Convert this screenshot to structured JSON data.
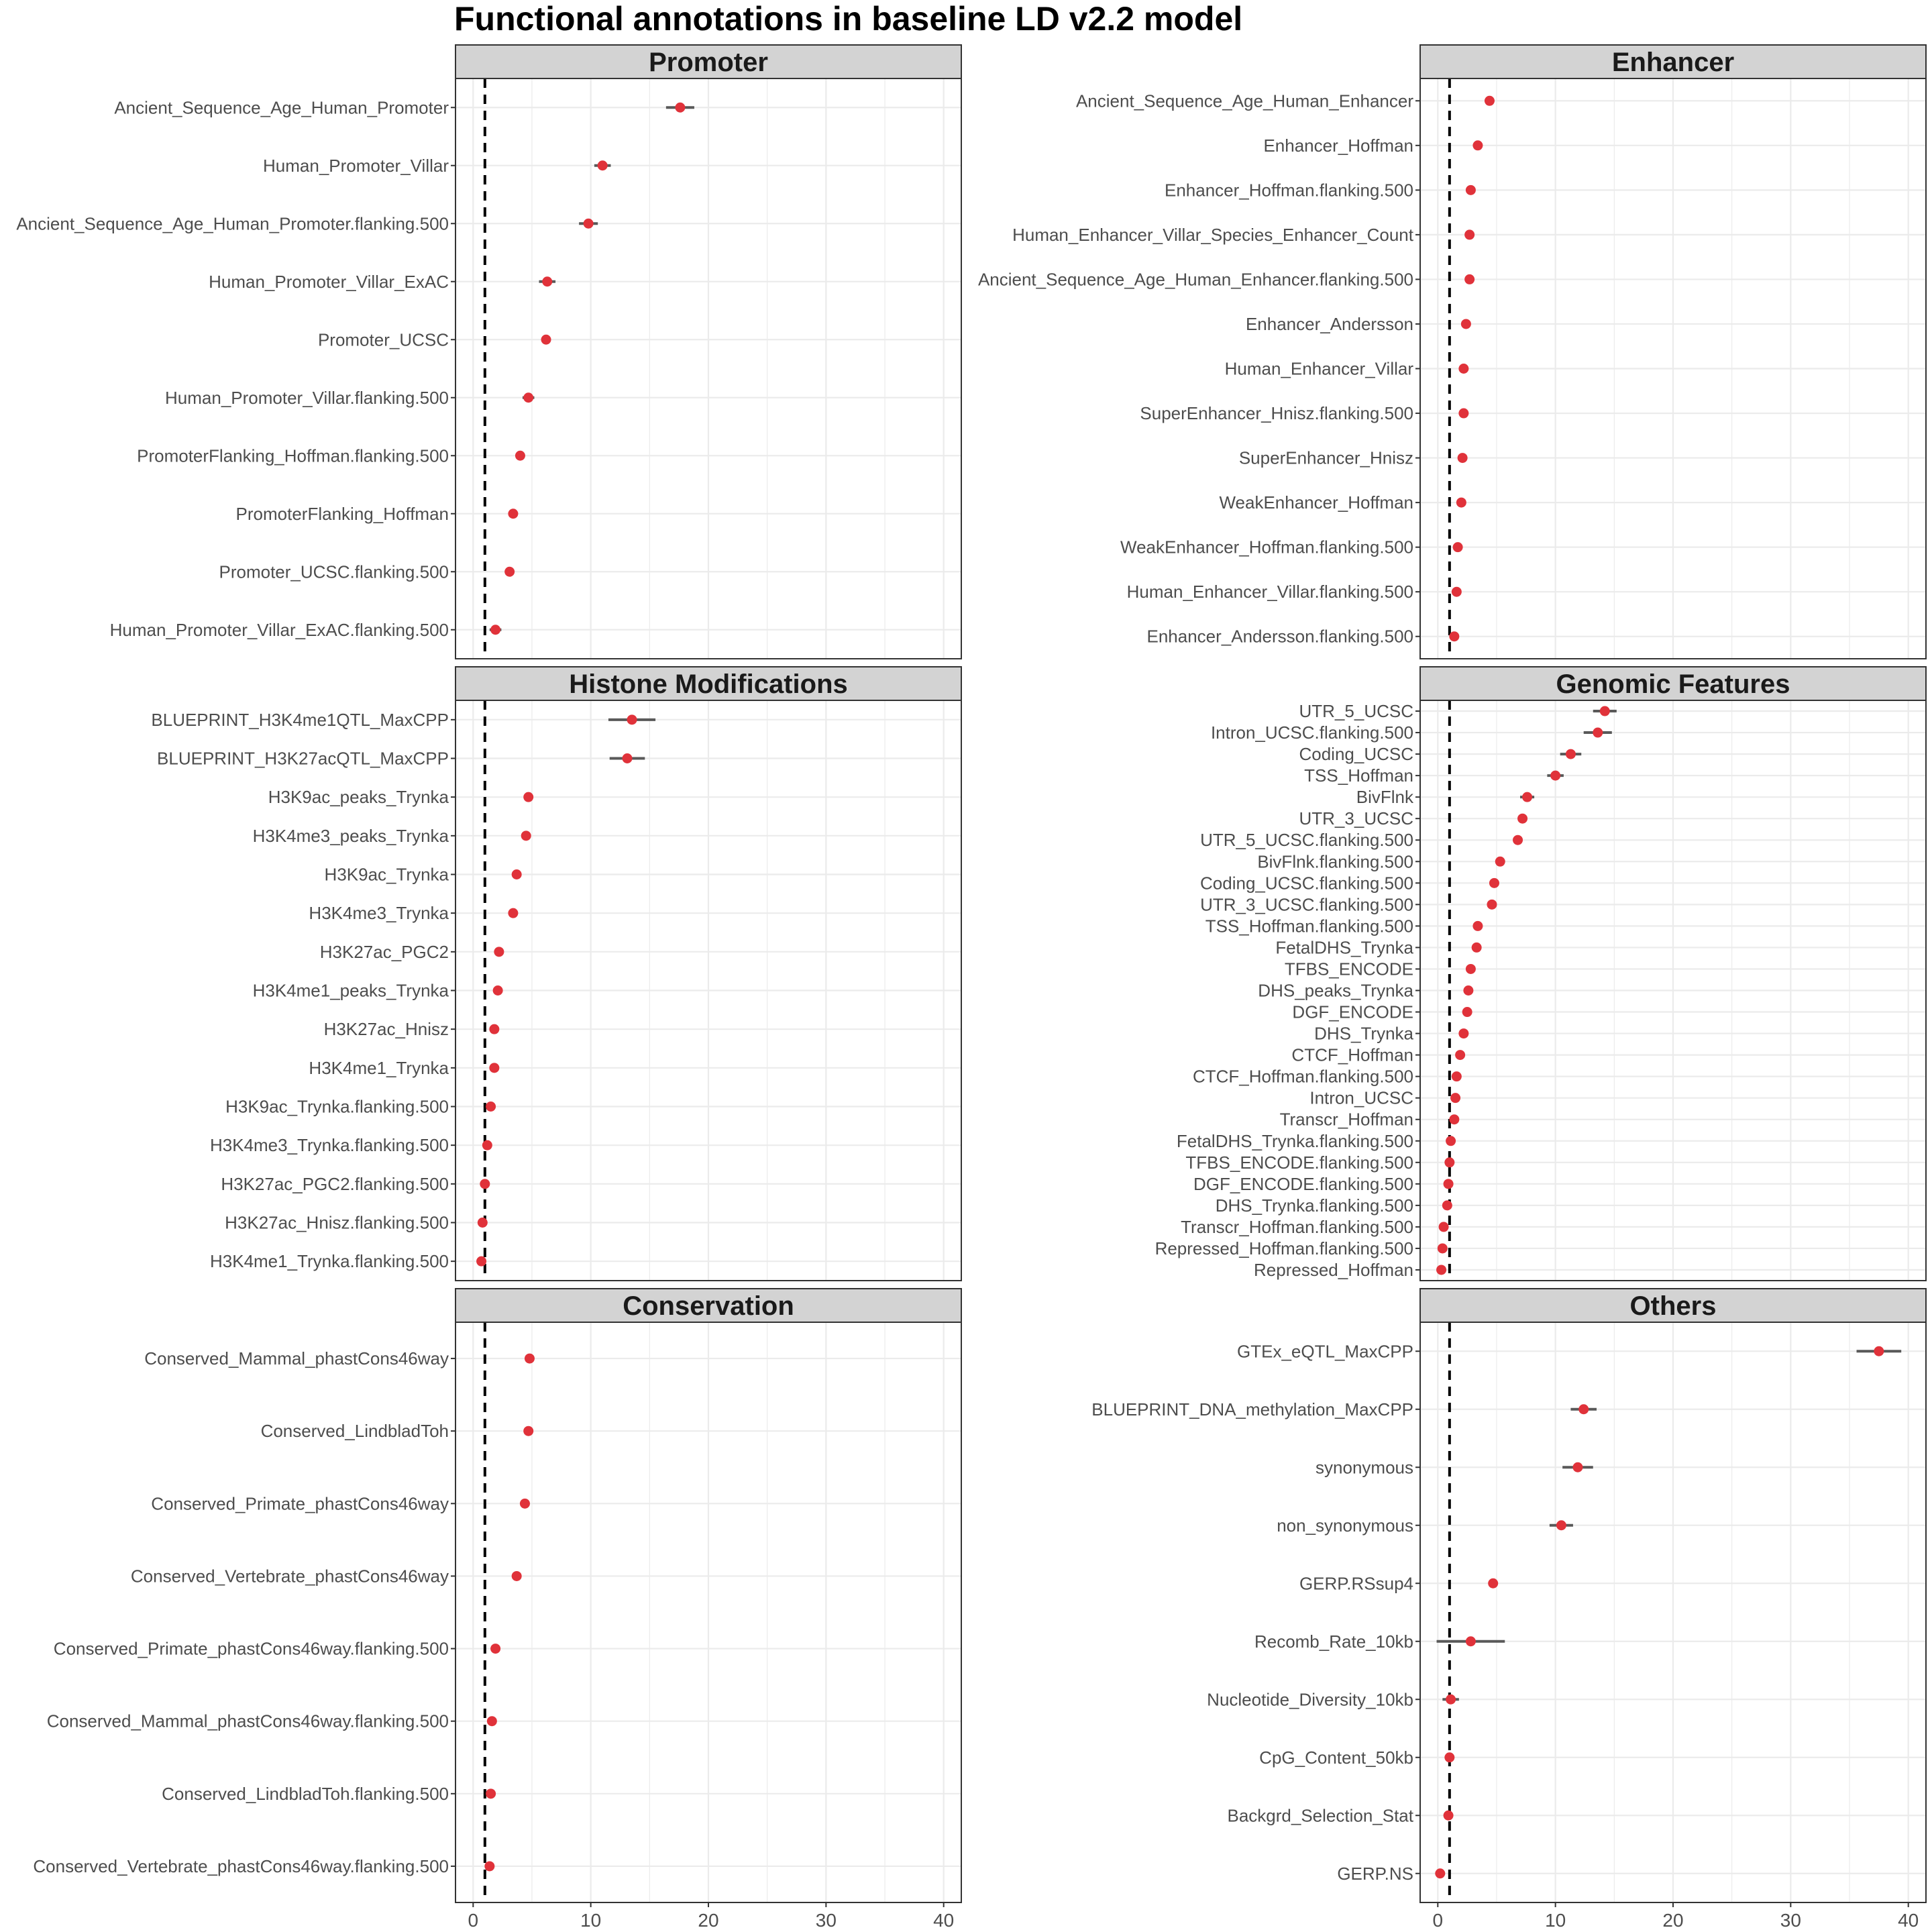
{
  "title": "Functional annotations in baseline LD v2.2 model",
  "colors": {
    "point": "#e0323a",
    "errorbar": "#595959",
    "strip": "#d3d3d3",
    "grid": "#ebebeb",
    "refline": "#000000"
  },
  "chart_data": [
    {
      "type": "scatter",
      "panel": "Promoter",
      "xlim": [
        -1.5,
        41.5
      ],
      "xticks": [
        0,
        10,
        20,
        30,
        40
      ],
      "ref_x": 1,
      "categories": [
        "Ancient_Sequence_Age_Human_Promoter",
        "Human_Promoter_Villar",
        "Ancient_Sequence_Age_Human_Promoter.flanking.500",
        "Human_Promoter_Villar_ExAC",
        "Promoter_UCSC",
        "Human_Promoter_Villar.flanking.500",
        "PromoterFlanking_Hoffman.flanking.500",
        "PromoterFlanking_Hoffman",
        "Promoter_UCSC.flanking.500",
        "Human_Promoter_Villar_ExAC.flanking.500"
      ],
      "values": [
        17.6,
        11.0,
        9.8,
        6.3,
        6.2,
        4.7,
        4.0,
        3.4,
        3.1,
        1.9
      ],
      "lower": [
        16.4,
        10.3,
        9.0,
        5.6,
        5.9,
        4.2,
        3.7,
        3.1,
        2.8,
        1.4
      ],
      "upper": [
        18.8,
        11.7,
        10.6,
        7.0,
        6.5,
        5.2,
        4.3,
        3.7,
        3.4,
        2.4
      ]
    },
    {
      "type": "scatter",
      "panel": "Enhancer",
      "xlim": [
        -1.5,
        41.5
      ],
      "xticks": [
        0,
        10,
        20,
        30,
        40
      ],
      "ref_x": 1,
      "categories": [
        "Ancient_Sequence_Age_Human_Enhancer",
        "Enhancer_Hoffman",
        "Enhancer_Hoffman.flanking.500",
        "Human_Enhancer_Villar_Species_Enhancer_Count",
        "Ancient_Sequence_Age_Human_Enhancer.flanking.500",
        "Enhancer_Andersson",
        "Human_Enhancer_Villar",
        "SuperEnhancer_Hnisz.flanking.500",
        "SuperEnhancer_Hnisz",
        "WeakEnhancer_Hoffman",
        "WeakEnhancer_Hoffman.flanking.500",
        "Human_Enhancer_Villar.flanking.500",
        "Enhancer_Andersson.flanking.500"
      ],
      "values": [
        4.4,
        3.4,
        2.8,
        2.7,
        2.7,
        2.4,
        2.2,
        2.2,
        2.1,
        2.0,
        1.7,
        1.6,
        1.4
      ],
      "lower": [
        4.0,
        3.1,
        2.5,
        2.4,
        2.4,
        2.1,
        1.9,
        1.8,
        1.8,
        1.7,
        1.4,
        1.3,
        1.1
      ],
      "upper": [
        4.8,
        3.7,
        3.1,
        3.0,
        3.0,
        2.7,
        2.5,
        2.6,
        2.4,
        2.3,
        2.0,
        1.9,
        1.7
      ]
    },
    {
      "type": "scatter",
      "panel": "Histone Modifications",
      "xlim": [
        -1.5,
        41.5
      ],
      "xticks": [
        0,
        10,
        20,
        30,
        40
      ],
      "ref_x": 1,
      "categories": [
        "BLUEPRINT_H3K4me1QTL_MaxCPP",
        "BLUEPRINT_H3K27acQTL_MaxCPP",
        "H3K9ac_peaks_Trynka",
        "H3K4me3_peaks_Trynka",
        "H3K9ac_Trynka",
        "H3K4me3_Trynka",
        "H3K27ac_PGC2",
        "H3K4me1_peaks_Trynka",
        "H3K27ac_Hnisz",
        "H3K4me1_Trynka",
        "H3K9ac_Trynka.flanking.500",
        "H3K4me3_Trynka.flanking.500",
        "H3K27ac_PGC2.flanking.500",
        "H3K27ac_Hnisz.flanking.500",
        "H3K4me1_Trynka.flanking.500"
      ],
      "values": [
        13.5,
        13.1,
        4.7,
        4.5,
        3.7,
        3.4,
        2.2,
        2.1,
        1.8,
        1.8,
        1.5,
        1.2,
        1.0,
        0.8,
        0.7
      ],
      "lower": [
        11.5,
        11.6,
        4.4,
        4.2,
        3.4,
        3.1,
        1.9,
        1.8,
        1.5,
        1.5,
        1.2,
        0.9,
        0.7,
        0.5,
        0.4
      ],
      "upper": [
        15.5,
        14.6,
        5.0,
        4.8,
        4.0,
        3.7,
        2.5,
        2.4,
        2.1,
        2.1,
        1.8,
        1.5,
        1.3,
        1.1,
        1.0
      ]
    },
    {
      "type": "scatter",
      "panel": "Genomic Features",
      "xlim": [
        -1.5,
        41.5
      ],
      "xticks": [
        0,
        10,
        20,
        30,
        40
      ],
      "ref_x": 1,
      "categories": [
        "UTR_5_UCSC",
        "Intron_UCSC.flanking.500",
        "Coding_UCSC",
        "TSS_Hoffman",
        "BivFlnk",
        "UTR_3_UCSC",
        "UTR_5_UCSC.flanking.500",
        "BivFlnk.flanking.500",
        "Coding_UCSC.flanking.500",
        "UTR_3_UCSC.flanking.500",
        "TSS_Hoffman.flanking.500",
        "FetalDHS_Trynka",
        "TFBS_ENCODE",
        "DHS_peaks_Trynka",
        "DGF_ENCODE",
        "DHS_Trynka",
        "CTCF_Hoffman",
        "CTCF_Hoffman.flanking.500",
        "Intron_UCSC",
        "Transcr_Hoffman",
        "FetalDHS_Trynka.flanking.500",
        "TFBS_ENCODE.flanking.500",
        "DGF_ENCODE.flanking.500",
        "DHS_Trynka.flanking.500",
        "Transcr_Hoffman.flanking.500",
        "Repressed_Hoffman.flanking.500",
        "Repressed_Hoffman"
      ],
      "values": [
        14.2,
        13.6,
        11.3,
        10.0,
        7.6,
        7.2,
        6.8,
        5.3,
        4.8,
        4.6,
        3.4,
        3.3,
        2.8,
        2.6,
        2.5,
        2.2,
        1.9,
        1.6,
        1.5,
        1.4,
        1.1,
        1.0,
        0.9,
        0.8,
        0.5,
        0.4,
        0.3
      ],
      "lower": [
        13.2,
        12.4,
        10.4,
        9.3,
        7.0,
        6.8,
        6.4,
        5.0,
        4.5,
        4.3,
        3.1,
        3.0,
        2.5,
        2.3,
        2.2,
        1.9,
        1.6,
        1.3,
        1.2,
        1.1,
        0.8,
        0.7,
        0.6,
        0.5,
        0.2,
        0.1,
        0.0
      ],
      "upper": [
        15.2,
        14.8,
        12.2,
        10.7,
        8.2,
        7.6,
        7.2,
        5.6,
        5.1,
        4.9,
        3.7,
        3.6,
        3.1,
        2.9,
        2.8,
        2.5,
        2.2,
        1.9,
        1.8,
        1.7,
        1.4,
        1.3,
        1.2,
        1.1,
        0.8,
        0.7,
        0.6
      ]
    },
    {
      "type": "scatter",
      "panel": "Conservation",
      "xlim": [
        -1.5,
        41.5
      ],
      "xticks": [
        0,
        10,
        20,
        30,
        40
      ],
      "ref_x": 1,
      "categories": [
        "Conserved_Mammal_phastCons46way",
        "Conserved_LindbladToh",
        "Conserved_Primate_phastCons46way",
        "Conserved_Vertebrate_phastCons46way",
        "Conserved_Primate_phastCons46way.flanking.500",
        "Conserved_Mammal_phastCons46way.flanking.500",
        "Conserved_LindbladToh.flanking.500",
        "Conserved_Vertebrate_phastCons46way.flanking.500"
      ],
      "values": [
        4.8,
        4.7,
        4.4,
        3.7,
        1.9,
        1.6,
        1.5,
        1.4
      ],
      "lower": [
        4.5,
        4.4,
        4.1,
        3.4,
        1.6,
        1.3,
        1.2,
        1.1
      ],
      "upper": [
        5.1,
        5.0,
        4.7,
        4.0,
        2.2,
        1.9,
        1.8,
        1.7
      ]
    },
    {
      "type": "scatter",
      "panel": "Others",
      "xlim": [
        -1.5,
        41.5
      ],
      "xticks": [
        0,
        10,
        20,
        30,
        40
      ],
      "ref_x": 1,
      "categories": [
        "GTEx_eQTL_MaxCPP",
        "BLUEPRINT_DNA_methylation_MaxCPP",
        "synonymous",
        "non_synonymous",
        "GERP.RSsup4",
        "Recomb_Rate_10kb",
        "Nucleotide_Diversity_10kb",
        "CpG_Content_50kb",
        "Backgrd_Selection_Stat",
        "GERP.NS"
      ],
      "values": [
        37.5,
        12.4,
        11.9,
        10.5,
        4.7,
        2.8,
        1.1,
        1.0,
        0.9,
        0.2
      ],
      "lower": [
        35.6,
        11.3,
        10.6,
        9.5,
        4.4,
        -0.1,
        0.4,
        0.7,
        0.6,
        -0.1
      ],
      "upper": [
        39.4,
        13.5,
        13.2,
        11.5,
        5.0,
        5.7,
        1.8,
        1.3,
        1.2,
        0.5
      ]
    }
  ]
}
